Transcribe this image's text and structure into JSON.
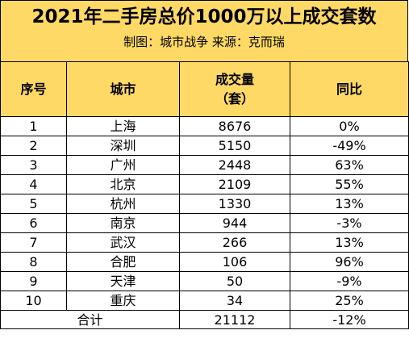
{
  "chart_data": {
    "type": "table",
    "title": "2021年二手房总价1000万以上成交套数",
    "subtitle": "制图：城市战争   来源：克而瑞",
    "columns": [
      "序号",
      "城市",
      "成交量（套）",
      "同比"
    ],
    "header": {
      "index": "序号",
      "city": "城市",
      "volume_line1": "成交量",
      "volume_line2": "（套）",
      "yoy": "同比"
    },
    "rows": [
      {
        "index": "1",
        "city": "上海",
        "volume": "8676",
        "yoy": "0%"
      },
      {
        "index": "2",
        "city": "深圳",
        "volume": "5150",
        "yoy": "-49%"
      },
      {
        "index": "3",
        "city": "广州",
        "volume": "2448",
        "yoy": "63%"
      },
      {
        "index": "4",
        "city": "北京",
        "volume": "2109",
        "yoy": "55%"
      },
      {
        "index": "5",
        "city": "杭州",
        "volume": "1330",
        "yoy": "13%"
      },
      {
        "index": "6",
        "city": "南京",
        "volume": "944",
        "yoy": "-3%"
      },
      {
        "index": "7",
        "city": "武汉",
        "volume": "266",
        "yoy": "13%"
      },
      {
        "index": "8",
        "city": "合肥",
        "volume": "106",
        "yoy": "96%"
      },
      {
        "index": "9",
        "city": "天津",
        "volume": "50",
        "yoy": "-9%"
      },
      {
        "index": "10",
        "city": "重庆",
        "volume": "34",
        "yoy": "25%"
      }
    ],
    "total": {
      "label": "合计",
      "volume": "21112",
      "yoy": "-12%"
    }
  },
  "colors": {
    "header_background": "#ffd966",
    "border": "#000000",
    "text": "#000000"
  }
}
